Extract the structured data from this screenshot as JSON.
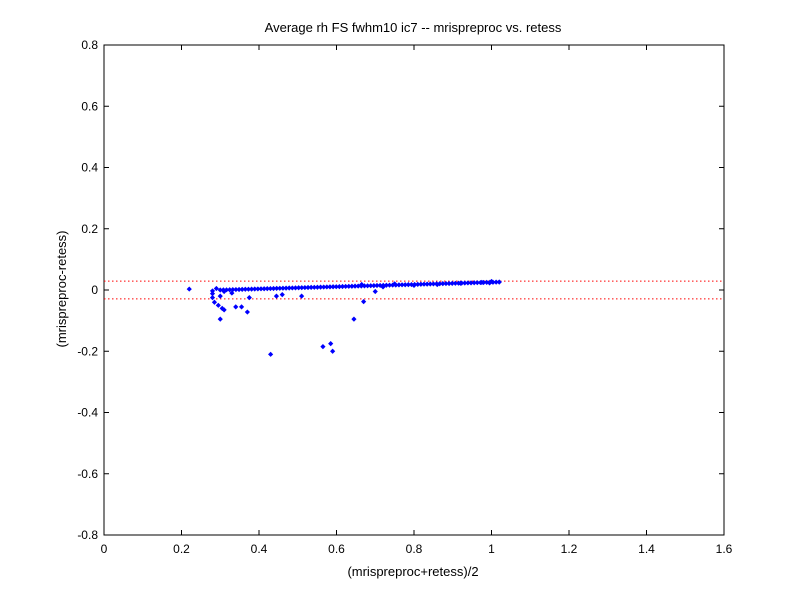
{
  "chart_data": {
    "type": "scatter",
    "title": "Average rh FS fwhm10 ic7 -- mrispreproc vs. retess",
    "xlabel": "(mrispreproc+retess)/2",
    "ylabel": "(mrispreproc-retess)",
    "xlim": [
      0,
      1.6
    ],
    "ylim": [
      -0.8,
      0.8
    ],
    "xticks": [
      0,
      0.2,
      0.4,
      0.6,
      0.8,
      1,
      1.2,
      1.4,
      1.6
    ],
    "xtick_labels": [
      "0",
      "0.2",
      "0.4",
      "0.6",
      "0.8",
      "1",
      "1.2",
      "1.4",
      "1.6"
    ],
    "yticks": [
      -0.8,
      -0.6,
      -0.4,
      -0.2,
      0,
      0.2,
      0.4,
      0.6,
      0.8
    ],
    "ytick_labels": [
      "-0.8",
      "-0.6",
      "-0.4",
      "-0.2",
      "0",
      "0.2",
      "0.4",
      "0.6",
      "0.8"
    ],
    "grid": false,
    "point_color": "#0000ff",
    "reference_line_color": "#ff0000",
    "reference_lines_y": [
      0.029,
      -0.029
    ],
    "main_trend": {
      "x_start": 0.3,
      "x_end": 1.02,
      "y_start": 0.0,
      "y_end": 0.026
    },
    "points": [
      [
        0.22,
        0.003
      ],
      [
        0.28,
        -0.003
      ],
      [
        0.28,
        -0.012
      ],
      [
        0.28,
        -0.025
      ],
      [
        0.285,
        -0.04
      ],
      [
        0.29,
        0.005
      ],
      [
        0.295,
        -0.05
      ],
      [
        0.3,
        -0.095
      ],
      [
        0.3,
        -0.02
      ],
      [
        0.305,
        -0.06
      ],
      [
        0.31,
        -0.065
      ],
      [
        0.31,
        -0.005
      ],
      [
        0.33,
        -0.01
      ],
      [
        0.34,
        -0.055
      ],
      [
        0.355,
        -0.055
      ],
      [
        0.37,
        -0.072
      ],
      [
        0.375,
        -0.025
      ],
      [
        0.43,
        -0.21
      ],
      [
        0.445,
        -0.02
      ],
      [
        0.46,
        -0.015
      ],
      [
        0.51,
        -0.02
      ],
      [
        0.565,
        -0.185
      ],
      [
        0.585,
        -0.175
      ],
      [
        0.59,
        -0.2
      ],
      [
        0.645,
        -0.095
      ],
      [
        0.665,
        0.018
      ],
      [
        0.67,
        -0.038
      ],
      [
        0.7,
        -0.005
      ],
      [
        0.72,
        0.01
      ],
      [
        0.75,
        0.02
      ],
      [
        0.8,
        0.015
      ],
      [
        0.86,
        0.018
      ],
      [
        0.92,
        0.022
      ],
      [
        0.975,
        0.025
      ],
      [
        0.995,
        0.023
      ],
      [
        1.0,
        0.028
      ],
      [
        1.02,
        0.026
      ]
    ]
  }
}
